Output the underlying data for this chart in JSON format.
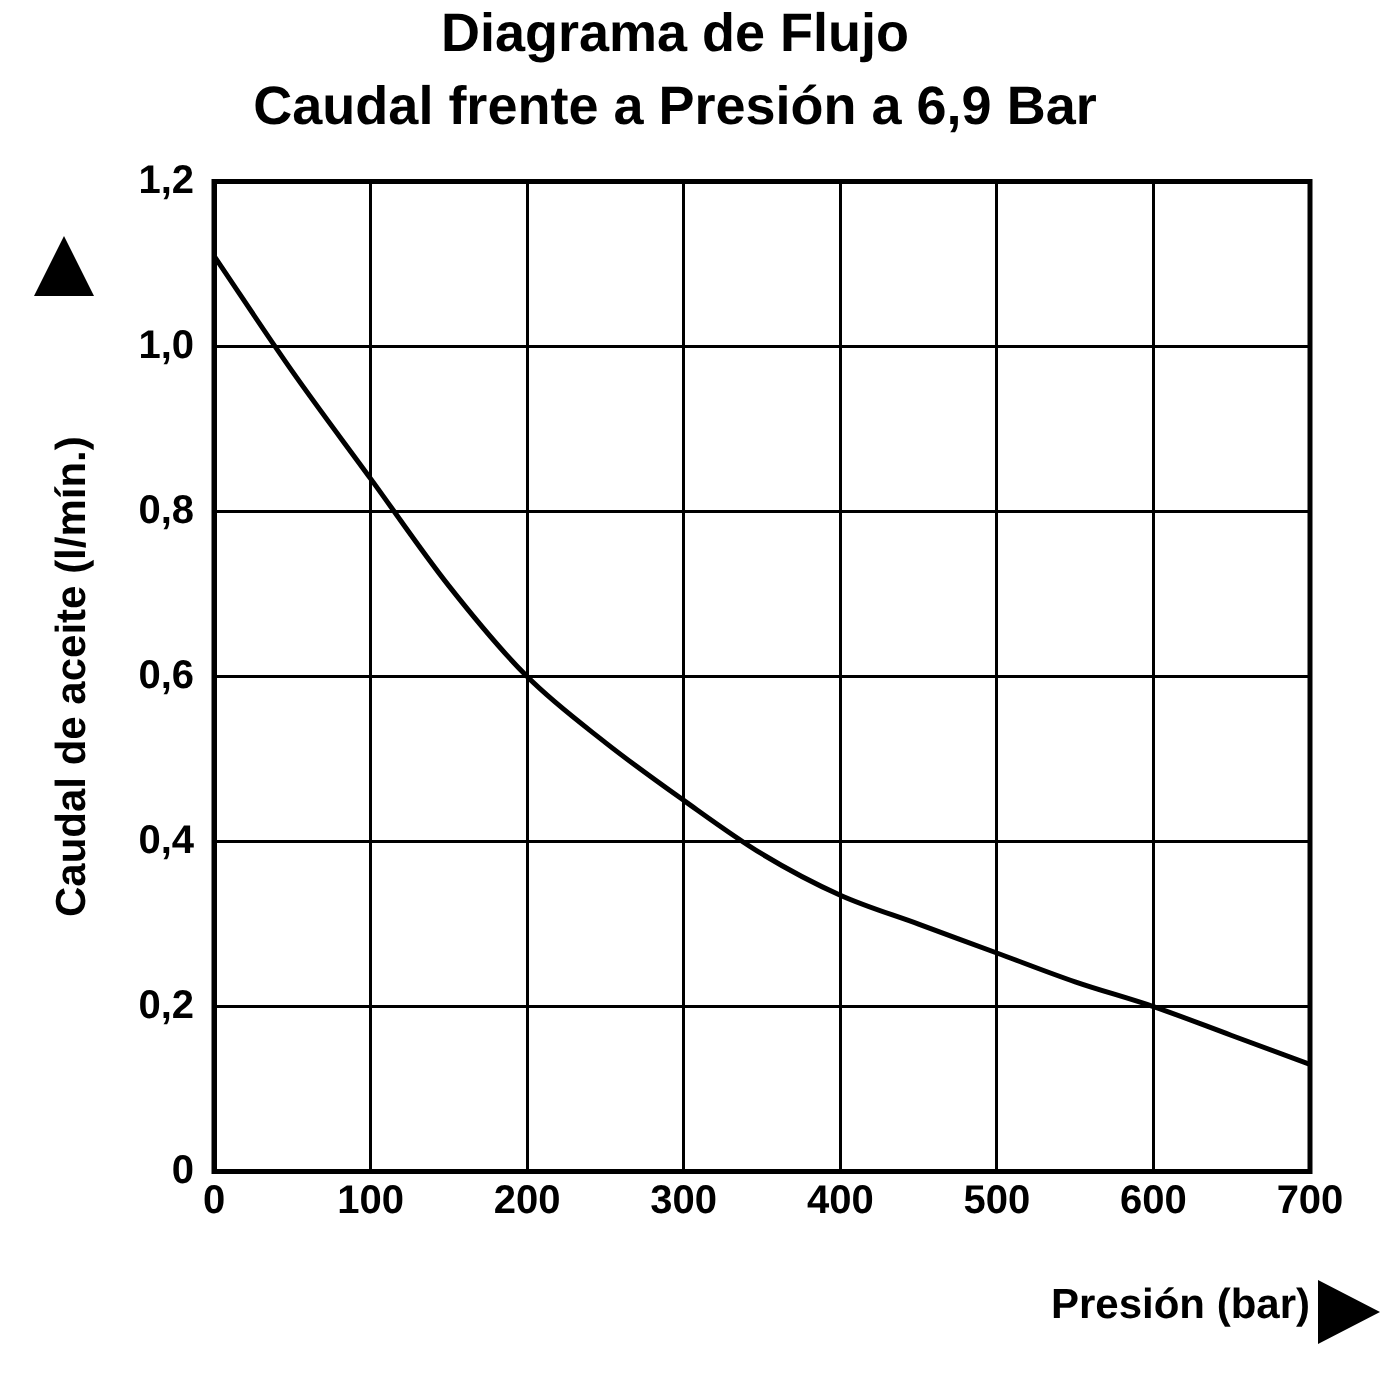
{
  "chart_data": {
    "type": "line",
    "title": "Diagrama de Flujo",
    "subtitle": "Caudal frente a Presión a 6,9 Bar",
    "xlabel": "Presión (bar)",
    "ylabel": "Caudal de aceite (l/mín.)",
    "x": [
      0,
      50,
      100,
      150,
      200,
      250,
      300,
      350,
      400,
      450,
      500,
      550,
      600,
      650,
      700
    ],
    "series": [
      {
        "color": "#000000",
        "values": [
          1.11,
          0.97,
          0.84,
          0.71,
          0.6,
          0.52,
          0.45,
          0.385,
          0.335,
          0.3,
          0.265,
          0.23,
          0.2,
          0.165,
          0.13
        ]
      }
    ],
    "xlim": [
      0,
      700
    ],
    "xticks": [
      0,
      100,
      200,
      300,
      400,
      500,
      600,
      700
    ],
    "ylim": [
      0,
      1.2
    ],
    "yticks": [
      0,
      {
        "value": 0.2,
        "label": "0,2"
      },
      {
        "value": 0.4,
        "label": "0,4"
      },
      {
        "value": 0.6,
        "label": "0,6"
      },
      {
        "value": 0.8,
        "label": "0,8"
      },
      {
        "value": 1.0,
        "label": "1,0"
      },
      {
        "value": 1.2,
        "label": "1,2"
      }
    ],
    "grid": true,
    "legend": false,
    "marker": "none",
    "line_style": "solid"
  }
}
